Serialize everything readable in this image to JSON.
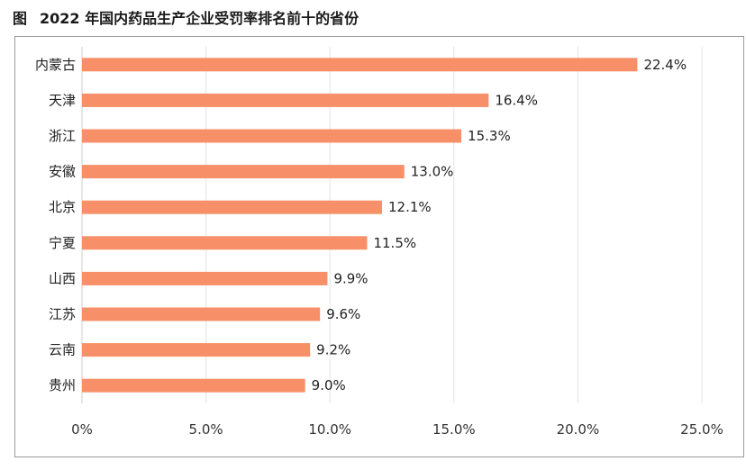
{
  "figure": {
    "prefix": "图",
    "title": "2022 年国内药品生产企业受罚率排名前十的省份"
  },
  "chart_data": {
    "type": "bar",
    "orientation": "horizontal",
    "categories": [
      "内蒙古",
      "天津",
      "浙江",
      "安徽",
      "北京",
      "宁夏",
      "山西",
      "江苏",
      "云南",
      "贵州"
    ],
    "values": [
      22.4,
      16.4,
      15.3,
      13.0,
      12.1,
      11.5,
      9.9,
      9.6,
      9.2,
      9.0
    ],
    "value_labels": [
      "22.4%",
      "16.4%",
      "15.3%",
      "13.0%",
      "12.1%",
      "11.5%",
      "9.9%",
      "9.6%",
      "9.2%",
      "9.0%"
    ],
    "x_ticks": [
      0,
      5,
      10,
      15,
      20,
      25
    ],
    "x_tick_labels": [
      "0%",
      "5.0%",
      "10.0%",
      "15.0%",
      "20.0%",
      "25.0%"
    ],
    "xlim": [
      0,
      25
    ],
    "grid": "vertical",
    "legend": "none",
    "bar_color": "#f79068",
    "grid_color": "#e4e4e4"
  }
}
